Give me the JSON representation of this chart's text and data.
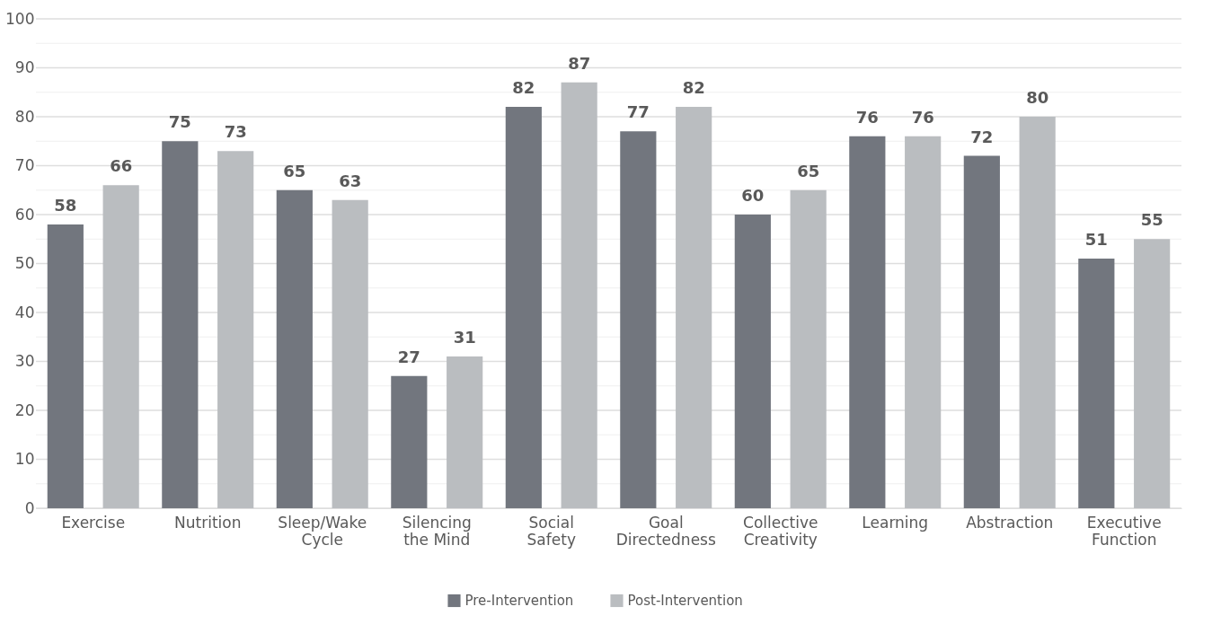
{
  "chart_data": {
    "type": "bar",
    "categories": [
      "Exercise",
      "Nutrition",
      "Sleep/Wake\nCycle",
      "Silencing\nthe Mind",
      "Social\nSafety",
      "Goal\nDirectedness",
      "Collective\nCreativity",
      "Learning",
      "Abstraction",
      "Executive\nFunction"
    ],
    "series": [
      {
        "name": "Pre-Intervention",
        "color": "#72767e",
        "values": [
          58,
          75,
          65,
          27,
          82,
          77,
          60,
          76,
          72,
          51
        ]
      },
      {
        "name": "Post-Intervention",
        "color": "#babdc0",
        "values": [
          66,
          73,
          63,
          31,
          87,
          82,
          65,
          76,
          80,
          55
        ]
      }
    ],
    "ylim": [
      0,
      100
    ],
    "yticks": [
      0,
      {
        "value": 5,
        "label": null
      },
      10,
      {
        "value": 15,
        "label": null
      },
      20,
      {
        "value": 25,
        "label": null
      },
      30,
      {
        "value": 35,
        "label": null
      },
      40,
      {
        "value": 45,
        "label": null
      },
      50,
      {
        "value": 55,
        "label": null
      },
      60,
      {
        "value": 65,
        "label": null
      },
      70,
      {
        "value": 75,
        "label": null
      },
      80,
      {
        "value": 85,
        "label": null
      },
      90,
      {
        "value": 95,
        "label": null
      },
      100
    ],
    "grid": "y",
    "legend": "bottom",
    "data_labels": true
  }
}
